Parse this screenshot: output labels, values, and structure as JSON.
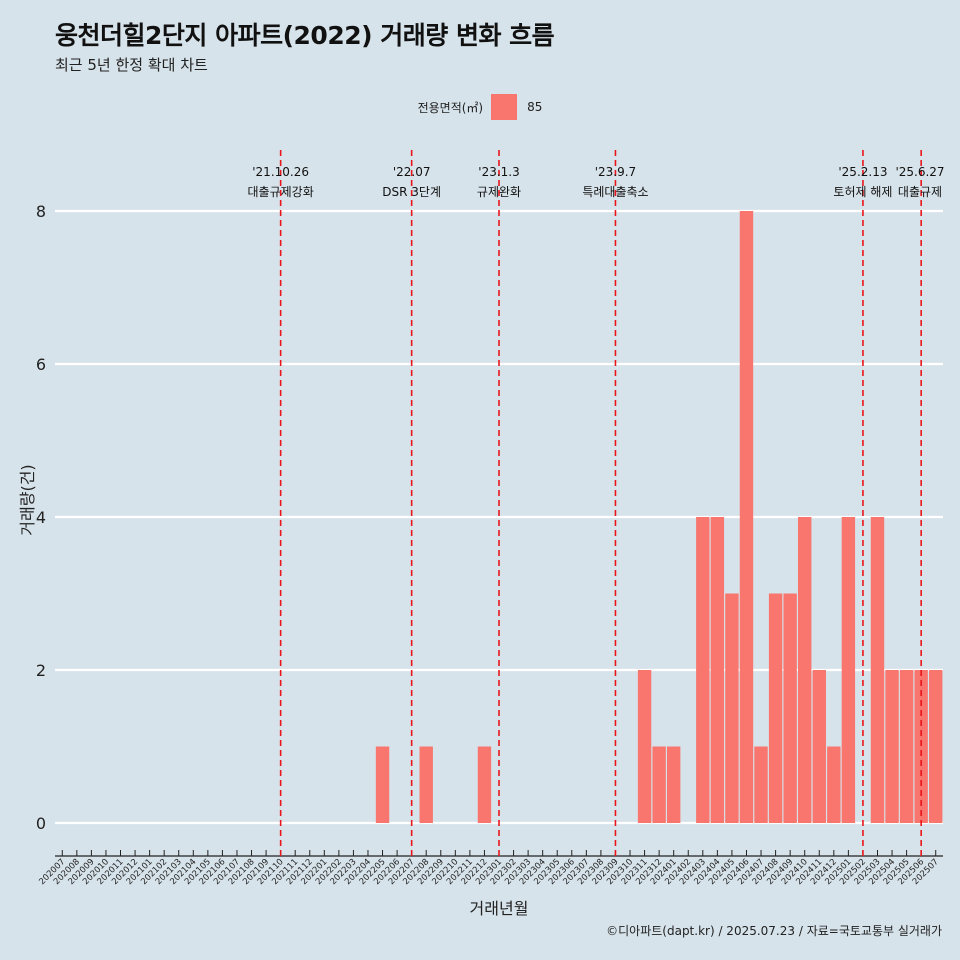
{
  "title": "웅천더힐2단지 아파트(2022) 거래량 변화 흐름",
  "subtitle": "최근 5년 한정 확대 차트",
  "caption": "©디아파트(dapt.kr) / 2025.07.23 / 자료=국토교통부 실거래가",
  "legend": {
    "title": "전용면적(㎡)",
    "items": [
      {
        "label": "85",
        "color": "#f8766d"
      }
    ]
  },
  "chart_data": {
    "type": "bar",
    "xlabel": "거래년월",
    "ylabel": "거래량(건)",
    "ylim": [
      0,
      8
    ],
    "yticks": [
      0,
      2,
      4,
      6,
      8
    ],
    "grid": "horizontal",
    "legend_position": "top",
    "categories": [
      "202007",
      "202008",
      "202009",
      "202010",
      "202011",
      "202012",
      "202101",
      "202102",
      "202103",
      "202104",
      "202105",
      "202106",
      "202107",
      "202108",
      "202109",
      "202110",
      "202111",
      "202112",
      "202201",
      "202202",
      "202203",
      "202204",
      "202205",
      "202206",
      "202207",
      "202208",
      "202209",
      "202210",
      "202211",
      "202212",
      "202301",
      "202302",
      "202303",
      "202304",
      "202305",
      "202306",
      "202307",
      "202308",
      "202309",
      "202310",
      "202311",
      "202312",
      "202401",
      "202402",
      "202403",
      "202404",
      "202405",
      "202406",
      "202407",
      "202408",
      "202409",
      "202410",
      "202411",
      "202412",
      "202501",
      "202502",
      "202503",
      "202504",
      "202505",
      "202506",
      "202507"
    ],
    "series": [
      {
        "name": "85",
        "color": "#f8766d",
        "values": [
          0,
          0,
          0,
          0,
          0,
          0,
          0,
          0,
          0,
          0,
          0,
          0,
          0,
          0,
          0,
          0,
          0,
          0,
          0,
          0,
          0,
          0,
          1,
          0,
          0,
          1,
          0,
          0,
          0,
          1,
          0,
          0,
          0,
          0,
          0,
          0,
          0,
          0,
          0,
          0,
          2,
          1,
          1,
          0,
          4,
          4,
          3,
          8,
          1,
          3,
          3,
          4,
          2,
          1,
          4,
          0,
          4,
          2,
          2,
          2,
          2
        ]
      }
    ],
    "events": [
      {
        "date": "'21.10.26",
        "label": "대출규제강화",
        "x": "202110"
      },
      {
        "date": "'22.07",
        "label": "DSR 3단계",
        "x": "202207"
      },
      {
        "date": "'23.1.3",
        "label": "규제완화",
        "x": "202301"
      },
      {
        "date": "'23.9.7",
        "label": "특례대출축소",
        "x": "202309"
      },
      {
        "date": "'25.2.13",
        "label": "토허제 해제",
        "x": "202502"
      },
      {
        "date": "'25.6.27",
        "label": "대출규제",
        "x": "202506"
      }
    ]
  }
}
